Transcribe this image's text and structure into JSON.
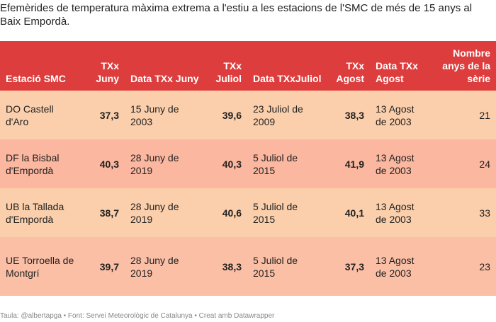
{
  "title": "Efemèrides de temperatura màxima extrema a l'estiu a les estacions de l'SMC de més de 15 anys al Baix Empordà.",
  "footer": "Taula: @albertapga • Font: Servei Meteorològic de Catalunya • Creat amb Datawrapper",
  "colors": {
    "header": "#de3d3d",
    "row_light": "#fbcfab",
    "row_dark": "#fbb79f"
  },
  "chart_data": {
    "type": "table",
    "columns": [
      "Estació SMC",
      "TXx Juny",
      "Data TXx Juny",
      "TXx Juliol",
      "Data TXxJuliol",
      "TXx Agost",
      "Data TXx Agost",
      "Nombre anys de la sèrie"
    ],
    "rows": [
      [
        "DO Castell d'Aro",
        "37,3",
        "15 Juny de 2003",
        "39,6",
        "23 Juliol de 2009",
        "38,3",
        "13 Agost de 2003",
        "21"
      ],
      [
        "DF la Bisbal d'Empordà",
        "40,3",
        "28 Juny de 2019",
        "40,3",
        "5 Juliol de 2015",
        "41,9",
        "13 Agost de 2003",
        "24"
      ],
      [
        "UB la Tallada d'Empordà",
        "38,7",
        "28 Juny de 2019",
        "40,6",
        "5 Juliol de 2015",
        "40,1",
        "13 Agost de 2003",
        "33"
      ],
      [
        "UE Torroella de Montgrí",
        "39,7",
        "28 Juny de 2019",
        "38,3",
        "5 Juliol de 2015",
        "37,3",
        "13 Agost de 2003",
        "23"
      ]
    ]
  }
}
